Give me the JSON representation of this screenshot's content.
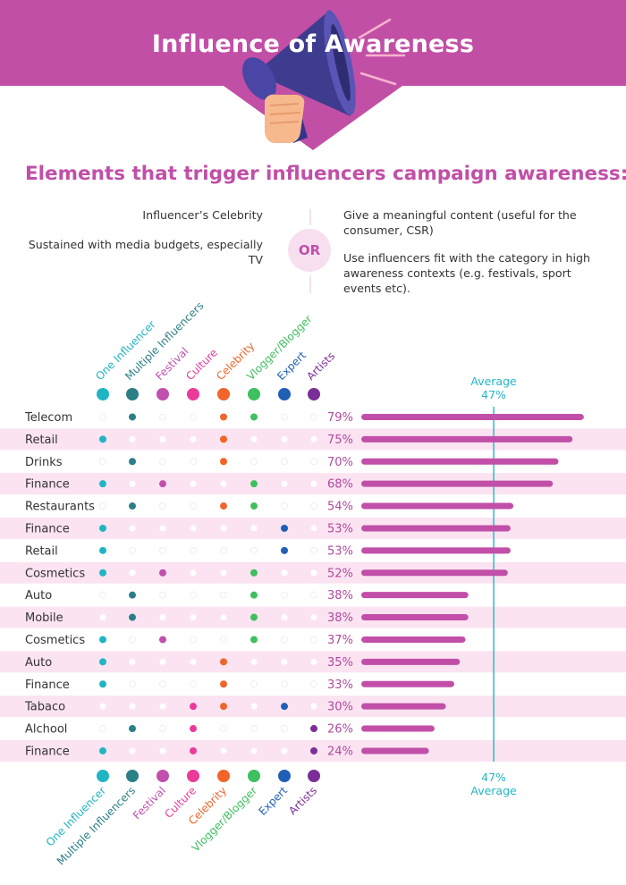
{
  "title": "Influence of Awareness",
  "subtitle": "Elements that trigger influencers campaign awareness:",
  "triggers": {
    "left": [
      "Influencer’s Celebrity",
      "Sustained with media budgets, especially TV"
    ],
    "or_label": "OR",
    "right": [
      "Give a meaningful content (useful for the consumer, CSR)",
      "Use influencers fit with the category in high awareness contexts (e.g. festivals, sport events etc)."
    ]
  },
  "icons": {
    "header": "megaphone-icon"
  },
  "colors": {
    "header_bg": "#c24fa6",
    "bar": "#c14fa8",
    "row_highlight": "#fbe3f1",
    "average_line": "#22b8c8",
    "percent_text": "#b04a9f"
  },
  "chart_data": {
    "type": "bar",
    "orientation": "horizontal",
    "unit": "%",
    "categories": [
      "Telecom",
      "Retail",
      "Drinks",
      "Finance",
      "Restaurants",
      "Finance",
      "Retail",
      "Cosmetics",
      "Auto",
      "Mobile",
      "Cosmetics",
      "Auto",
      "Finance",
      "Tabaco",
      "Alchool",
      "Finance"
    ],
    "values": [
      79,
      75,
      70,
      68,
      54,
      53,
      53,
      52,
      38,
      38,
      37,
      35,
      33,
      30,
      26,
      24
    ],
    "value_labels": [
      "79%",
      "75%",
      "70%",
      "68%",
      "54%",
      "53%",
      "53%",
      "52%",
      "38%",
      "38%",
      "37%",
      "35%",
      "33%",
      "30%",
      "26%",
      "24%"
    ],
    "average": {
      "value": 47,
      "label": "Average",
      "value_label": "47%"
    },
    "influencer_types": [
      {
        "name": "One Influencer",
        "color": "#21b5c4"
      },
      {
        "name": "Multiple Influencers",
        "color": "#2b7f86"
      },
      {
        "name": "Festival",
        "color": "#c04fae"
      },
      {
        "name": "Culture",
        "color": "#ea3b9a"
      },
      {
        "name": "Celebrity",
        "color": "#f2642a"
      },
      {
        "name": "Vlogger/Blogger",
        "color": "#3fbf5f"
      },
      {
        "name": "Expert",
        "color": "#1f5fb5"
      },
      {
        "name": "Artists",
        "color": "#7b2e97"
      }
    ],
    "type_matrix": [
      [
        0,
        1,
        0,
        0,
        1,
        1,
        0,
        0
      ],
      [
        1,
        0,
        0,
        0,
        1,
        0,
        0,
        0
      ],
      [
        0,
        1,
        0,
        0,
        1,
        0,
        0,
        0
      ],
      [
        1,
        0,
        1,
        0,
        0,
        1,
        0,
        0
      ],
      [
        0,
        1,
        0,
        0,
        1,
        1,
        0,
        0
      ],
      [
        1,
        0,
        0,
        0,
        0,
        0,
        1,
        0
      ],
      [
        1,
        0,
        0,
        0,
        0,
        0,
        1,
        0
      ],
      [
        1,
        0,
        1,
        0,
        0,
        1,
        0,
        0
      ],
      [
        0,
        1,
        0,
        0,
        0,
        1,
        0,
        0
      ],
      [
        0,
        1,
        0,
        0,
        0,
        1,
        0,
        0
      ],
      [
        1,
        0,
        1,
        0,
        0,
        1,
        0,
        0
      ],
      [
        1,
        0,
        0,
        0,
        1,
        0,
        0,
        0
      ],
      [
        1,
        0,
        0,
        0,
        1,
        0,
        0,
        0
      ],
      [
        0,
        0,
        0,
        1,
        1,
        0,
        1,
        0
      ],
      [
        0,
        1,
        0,
        1,
        0,
        0,
        0,
        1
      ],
      [
        1,
        0,
        0,
        1,
        0,
        0,
        0,
        1
      ]
    ]
  }
}
